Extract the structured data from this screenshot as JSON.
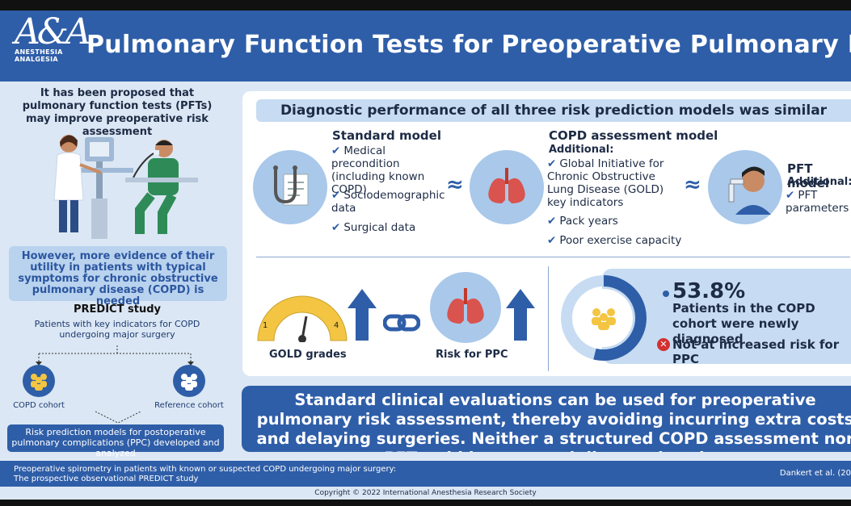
{
  "header": {
    "logo_big": "A&A",
    "logo_line1": "ANESTHESIA",
    "logo_line2": "ANALGESIA",
    "title": "Pulmonary Function Tests for Preoperative Pulmonary Risk Assessment"
  },
  "left": {
    "intro": "It has been proposed that pulmonary function tests (PFTs) may improve preoperative risk assessment",
    "evidence": "However, more evidence of their utility in patients with typical symptoms for chronic obstructive pulmonary disease (COPD) is needed",
    "predict_title": "PREDICT study",
    "predict_sub": "Patients with key indicators for COPD undergoing major surgery",
    "copd_cohort": "COPD cohort",
    "reference_cohort": "Reference cohort",
    "risk_models": "Risk prediction models for postoperative pulmonary complications (PPC) developed and analyzed"
  },
  "main": {
    "diag_title": "Diagnostic performance of all three risk prediction models was similar",
    "standard": {
      "title": "Standard model",
      "items": [
        "Medical precondition (including known COPD)",
        "Sociodemographic data",
        "Surgical data"
      ]
    },
    "copd": {
      "title": "COPD assessment model",
      "additional": "Additional:",
      "items": [
        "Global Initiative for Chronic Obstructive Lung Disease (GOLD) key indicators",
        "Pack years",
        "Poor exercise capacity"
      ]
    },
    "pft": {
      "title": "PFT model",
      "additional": "Additional:",
      "items": [
        "PFT parameters"
      ]
    },
    "approx": "≈",
    "gold_label": "GOLD grades",
    "gauge_min": "1",
    "gauge_max": "4",
    "ppc_label": "Risk for PPC",
    "stat_pct": "53.8%",
    "stat_text": "Patients in the COPD cohort were newly diagnosed",
    "not_risk": "Not at increased risk for PPC"
  },
  "conclusion": "Standard clinical evaluations can be used for preoperative pulmonary risk assessment, thereby avoiding incurring extra costs and delaying surgeries. Neither a structured COPD assessment nor PFTs add incremental diagnostic value",
  "footer": {
    "citation_line1": "Preoperative spirometry in patients with known or suspected COPD undergoing major surgery:",
    "citation_line2": "The prospective observational PREDICT study",
    "author": "Dankert et al. (20",
    "copyright": "Copyright © 2022 International Anesthesia Research Society"
  },
  "colors": {
    "primary": "#2f5ea8",
    "light": "#dbe7f4",
    "accent": "#c7dcf2"
  }
}
